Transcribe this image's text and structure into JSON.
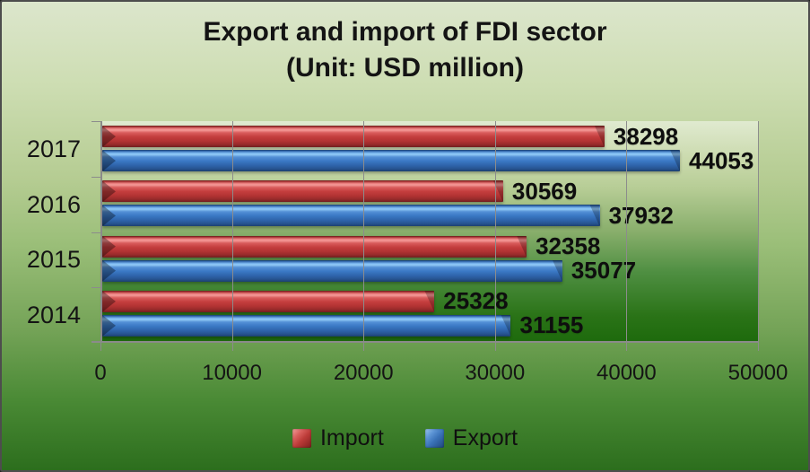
{
  "title": {
    "line1": "Export and import of FDI sector",
    "line2": "(Unit: USD million)"
  },
  "chart_data": {
    "type": "bar",
    "orientation": "horizontal",
    "title": "Export and import of FDI sector (Unit: USD million)",
    "categories": [
      "2017",
      "2016",
      "2015",
      "2014"
    ],
    "series": [
      {
        "name": "Import",
        "color": "#c43d3d",
        "values": [
          38298,
          30569,
          32358,
          25328
        ]
      },
      {
        "name": "Export",
        "color": "#3a78c4",
        "values": [
          44053,
          37932,
          35077,
          31155
        ]
      }
    ],
    "xlabel": "",
    "ylabel": "",
    "xlim": [
      0,
      50000
    ],
    "x_ticks": [
      "0",
      "10000",
      "20000",
      "30000",
      "40000",
      "50000"
    ],
    "grid": true,
    "data_labels": true,
    "legend_position": "bottom"
  },
  "legend": {
    "items": [
      {
        "label": "Import",
        "color": "#c43d3d"
      },
      {
        "label": "Export",
        "color": "#3a78c4"
      }
    ]
  },
  "colors": {
    "background_top": "#dce6cc",
    "background_bottom": "#2c6e1d",
    "gridline": "#8c8c8c",
    "text": "#141414",
    "import_bar": "#c43d3d",
    "export_bar": "#3a78c4"
  }
}
